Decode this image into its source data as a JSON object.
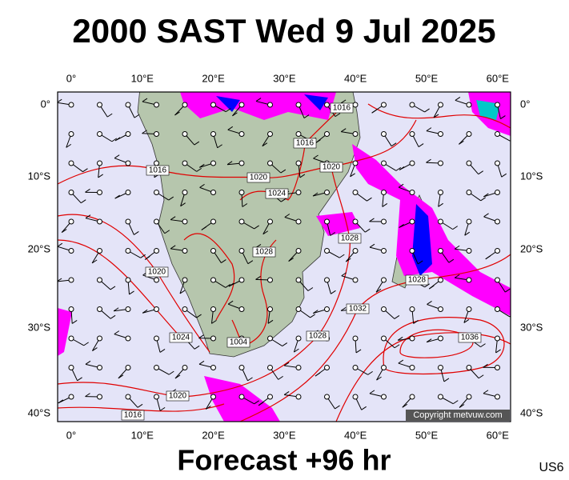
{
  "header": {
    "title": "2000 SAST Wed 9 Jul 2025"
  },
  "map": {
    "lon_labels": [
      "0°",
      "10°E",
      "20°E",
      "30°E",
      "40°E",
      "50°E",
      "60°E"
    ],
    "lat_labels": [
      "0°",
      "10°S",
      "20°S",
      "30°S",
      "40°S"
    ],
    "isobar_labels": [
      "1016",
      "1020",
      "1024",
      "1016",
      "1016",
      "1020",
      "1020",
      "1028",
      "1024",
      "1004",
      "1028",
      "1032",
      "1028",
      "1028",
      "1036",
      "1020",
      "1016"
    ],
    "copyright": "Copyright metvuw.com"
  },
  "footer": {
    "forecast": "Forecast +96 hr",
    "code": "US6"
  }
}
